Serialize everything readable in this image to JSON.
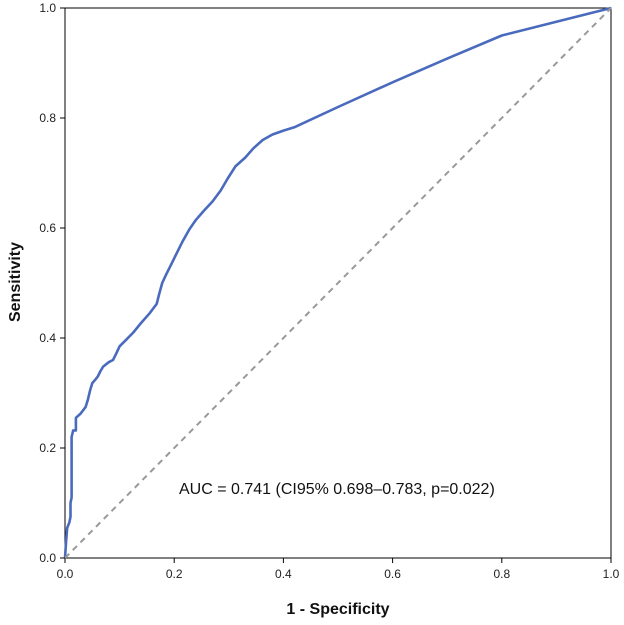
{
  "chart_data": {
    "type": "line",
    "title": "",
    "xlabel": "1 - Specificity",
    "ylabel": "Sensitivity",
    "xlim": [
      0,
      1
    ],
    "ylim": [
      0,
      1
    ],
    "x_ticks": [
      "0.0",
      "0.2",
      "0.4",
      "0.6",
      "0.8",
      "1.0"
    ],
    "y_ticks": [
      "0.0",
      "0.2",
      "0.4",
      "0.6",
      "0.8",
      "1.0"
    ],
    "grid": false,
    "annotation": "AUC = 0.741 (CI95% 0.698–0.783, p=0.022)",
    "series": [
      {
        "color": "#4a6bbd",
        "style": "solid",
        "points": [
          [
            0.0,
            0.0
          ],
          [
            0.002,
            0.03
          ],
          [
            0.004,
            0.055
          ],
          [
            0.008,
            0.065
          ],
          [
            0.01,
            0.075
          ],
          [
            0.01,
            0.1
          ],
          [
            0.012,
            0.11
          ],
          [
            0.012,
            0.22
          ],
          [
            0.015,
            0.232
          ],
          [
            0.02,
            0.232
          ],
          [
            0.02,
            0.255
          ],
          [
            0.028,
            0.262
          ],
          [
            0.032,
            0.267
          ],
          [
            0.038,
            0.275
          ],
          [
            0.042,
            0.288
          ],
          [
            0.046,
            0.305
          ],
          [
            0.05,
            0.318
          ],
          [
            0.056,
            0.325
          ],
          [
            0.06,
            0.33
          ],
          [
            0.065,
            0.34
          ],
          [
            0.07,
            0.348
          ],
          [
            0.08,
            0.356
          ],
          [
            0.088,
            0.36
          ],
          [
            0.094,
            0.372
          ],
          [
            0.1,
            0.385
          ],
          [
            0.11,
            0.395
          ],
          [
            0.125,
            0.41
          ],
          [
            0.14,
            0.428
          ],
          [
            0.155,
            0.445
          ],
          [
            0.168,
            0.462
          ],
          [
            0.172,
            0.478
          ],
          [
            0.178,
            0.5
          ],
          [
            0.185,
            0.515
          ],
          [
            0.195,
            0.535
          ],
          [
            0.205,
            0.555
          ],
          [
            0.215,
            0.575
          ],
          [
            0.228,
            0.598
          ],
          [
            0.24,
            0.615
          ],
          [
            0.255,
            0.632
          ],
          [
            0.27,
            0.648
          ],
          [
            0.285,
            0.668
          ],
          [
            0.298,
            0.69
          ],
          [
            0.312,
            0.712
          ],
          [
            0.33,
            0.728
          ],
          [
            0.345,
            0.745
          ],
          [
            0.362,
            0.76
          ],
          [
            0.38,
            0.77
          ],
          [
            0.4,
            0.777
          ],
          [
            0.42,
            0.783
          ],
          [
            0.5,
            0.82
          ],
          [
            0.6,
            0.865
          ],
          [
            0.7,
            0.908
          ],
          [
            0.8,
            0.95
          ],
          [
            0.9,
            0.975
          ],
          [
            1.0,
            1.0
          ]
        ]
      },
      {
        "color": "#999999",
        "style": "dashed",
        "points": [
          [
            0,
            0
          ],
          [
            1,
            1
          ]
        ]
      }
    ]
  }
}
